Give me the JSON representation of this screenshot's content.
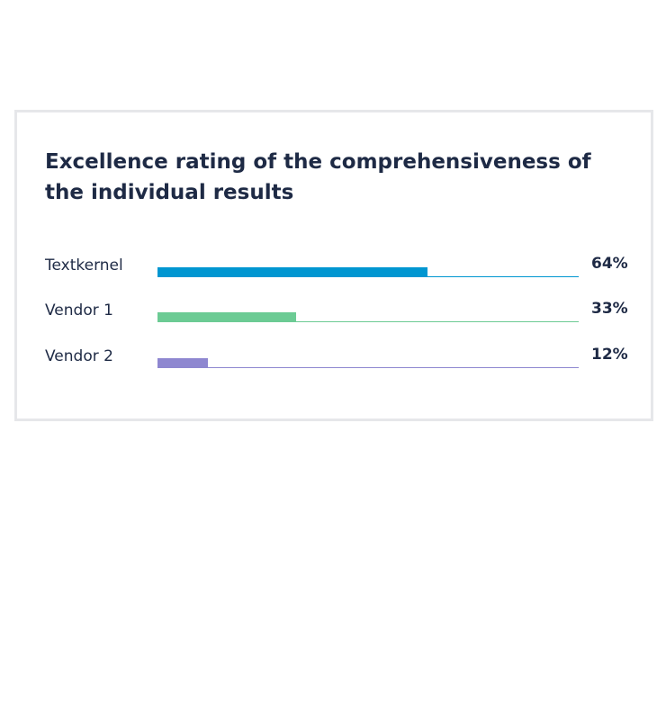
{
  "chart_data": {
    "type": "bar",
    "orientation": "horizontal",
    "title": "Excellence rating of the comprehensiveness of the individual results",
    "categories": [
      "Textkernel",
      "Vendor 1",
      "Vendor 2"
    ],
    "values": [
      64,
      33,
      12
    ],
    "value_labels": [
      "64%",
      "33%",
      "12%"
    ],
    "colors": [
      "#0096d1",
      "#6ccb94",
      "#8e87d0"
    ],
    "xlim": [
      0,
      100
    ]
  }
}
